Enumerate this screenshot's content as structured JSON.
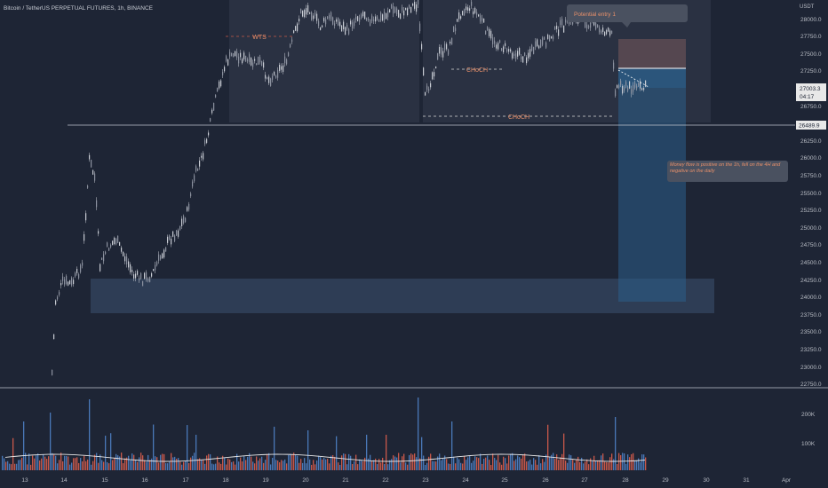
{
  "symbol_title": "Bitcoin / TetherUS PERPETUAL FUTURES, 1h, BINANCE",
  "currency": "USDT",
  "price_axis": [
    "28000.0",
    "27750.0",
    "27500.0",
    "27250.0",
    "26750.0",
    "26250.0",
    "26000.0",
    "25750.0",
    "25500.0",
    "25250.0",
    "25000.0",
    "24750.0",
    "24500.0",
    "24250.0",
    "24000.0",
    "23750.0",
    "23500.0",
    "23250.0",
    "23000.0",
    "22750.0"
  ],
  "volume_axis": [
    "200K",
    "100K"
  ],
  "date_axis": [
    "13",
    "14",
    "15",
    "16",
    "17",
    "18",
    "19",
    "20",
    "21",
    "22",
    "23",
    "24",
    "25",
    "26",
    "27",
    "28",
    "29",
    "30",
    "31",
    "Apr"
  ],
  "last_price": "27003.3",
  "countdown": "04:17",
  "level_price": "26489.9",
  "annotations": {
    "wts": "WTS",
    "choch_upper": "CHoCH",
    "choch_lower": "CHoCH",
    "entry_note": "Potential entry 1",
    "money_flow_note": "Money flow is positive on the 1h, fell on the 4H and negative on the daily"
  },
  "colors": {
    "background": "#1e2535",
    "candle": "#c8ccd4",
    "volume_up": "#4a78b8",
    "volume_down": "#c8584a",
    "stop_zone": "#5a4a52",
    "target_zone": "#2c5f8a",
    "demand_zone": "#344660",
    "annotation_text": "#e8906a"
  }
}
